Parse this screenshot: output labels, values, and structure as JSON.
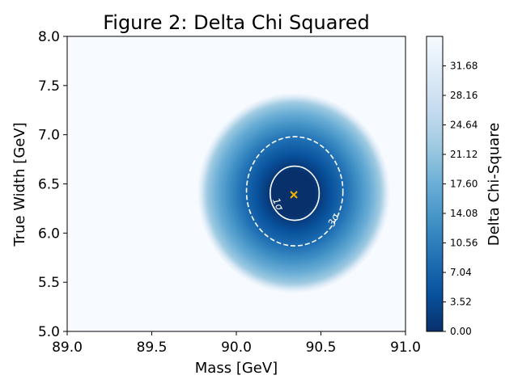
{
  "chart_data": {
    "type": "heatmap",
    "title": "Figure 2: Delta Chi Squared",
    "xlabel": "Mass [GeV]",
    "ylabel": "True Width [GeV]",
    "xlim": [
      89.0,
      91.0
    ],
    "ylim": [
      5.0,
      8.0
    ],
    "x_ticks": [
      "89.0",
      "89.5",
      "90.0",
      "90.5",
      "91.0"
    ],
    "y_ticks": [
      "5.0",
      "5.5",
      "6.0",
      "6.5",
      "7.0",
      "7.5",
      "8.0"
    ],
    "minimum": {
      "x": 90.34,
      "y": 6.39,
      "marker": "x",
      "color": "#f4b400"
    },
    "contours": [
      {
        "label": "1σ",
        "style": "solid",
        "delta_chi2": 2.3,
        "x_range": [
          90.2,
          90.49
        ],
        "y_range": [
          6.13,
          6.68
        ]
      },
      {
        "label": "3σ",
        "style": "dashed",
        "delta_chi2": 11.8,
        "x_range": [
          90.06,
          90.63
        ],
        "y_range": [
          5.87,
          6.98
        ]
      }
    ],
    "colorbar": {
      "label": "Delta Chi-Square",
      "range": [
        0.0,
        35.2
      ],
      "ticks": [
        "0.00",
        "3.52",
        "7.04",
        "10.56",
        "14.08",
        "17.60",
        "21.12",
        "24.64",
        "28.16",
        "31.68"
      ],
      "colormap": "Blues_r"
    }
  }
}
